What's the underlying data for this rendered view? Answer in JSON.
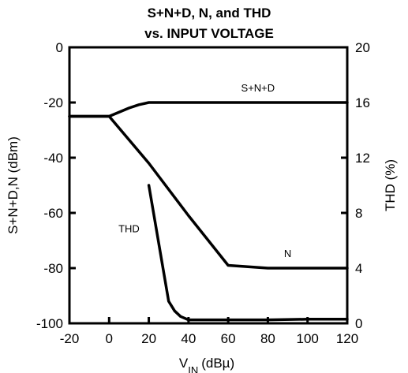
{
  "chart_data": {
    "type": "line",
    "title_line1": "S+N+D, N, and THD",
    "title_line2": "vs. INPUT VOLTAGE",
    "xlabel_main": "V",
    "xlabel_sub": "IN",
    "xlabel_unit": "(dBµ)",
    "ylabel_left": "S+N+D,N (dBm)",
    "ylabel_right": "THD (%)",
    "xlim": [
      -20,
      120
    ],
    "ylim_left": [
      -100,
      0
    ],
    "ylim_right": [
      0,
      20
    ],
    "x_ticks": [
      "-20",
      "0",
      "20",
      "40",
      "60",
      "80",
      "100",
      "120"
    ],
    "y_left_ticks": [
      "0",
      "-20",
      "-40",
      "-60",
      "-80",
      "-100"
    ],
    "y_right_ticks": [
      "20",
      "16",
      "12",
      "8",
      "4",
      "0"
    ],
    "grid": false,
    "series": [
      {
        "name": "S+N+D",
        "axis": "left",
        "points": [
          [
            -20,
            -25
          ],
          [
            0,
            -25
          ],
          [
            5,
            -23.5
          ],
          [
            10,
            -22
          ],
          [
            15,
            -20.8
          ],
          [
            20,
            -20
          ],
          [
            120,
            -20
          ]
        ]
      },
      {
        "name": "N",
        "axis": "left",
        "points": [
          [
            -20,
            -25
          ],
          [
            0,
            -25
          ],
          [
            20,
            -42
          ],
          [
            40,
            -61
          ],
          [
            60,
            -79
          ],
          [
            80,
            -80
          ],
          [
            120,
            -80
          ]
        ]
      },
      {
        "name": "THD",
        "axis": "right",
        "points": [
          [
            20,
            10
          ],
          [
            30,
            1.6
          ],
          [
            33,
            0.9
          ],
          [
            36,
            0.5
          ],
          [
            40,
            0.25
          ],
          [
            60,
            0.25
          ],
          [
            80,
            0.25
          ],
          [
            100,
            0.3
          ],
          [
            120,
            0.3
          ]
        ]
      }
    ],
    "annotations": [
      {
        "text": "S+N+D",
        "x": 75,
        "y_left": -16,
        "axis": "left"
      },
      {
        "text": "N",
        "x": 90,
        "y_left": -76,
        "axis": "left"
      },
      {
        "text": "THD",
        "x": 10,
        "y_left": -67,
        "axis": "left"
      }
    ]
  }
}
